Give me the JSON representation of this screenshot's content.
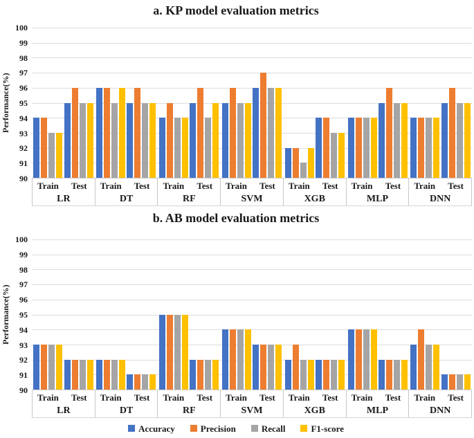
{
  "chart_data": [
    {
      "type": "bar",
      "title": "a. KP model evaluation metrics",
      "ylabel": "Performance(%)",
      "ylim": [
        90,
        100
      ],
      "ytick_step": 1,
      "grid": "horizontal",
      "legend_position": "shared-bottom",
      "models": [
        "LR",
        "DT",
        "RF",
        "SVM",
        "XGB",
        "MLP",
        "DNN"
      ],
      "phases": [
        "Train",
        "Test"
      ],
      "series": [
        {
          "name": "Accuracy",
          "color": "#4472C4",
          "values": [
            [
              94,
              95
            ],
            [
              96,
              95
            ],
            [
              94,
              95
            ],
            [
              95,
              96
            ],
            [
              92,
              94
            ],
            [
              94,
              95
            ],
            [
              94,
              95
            ]
          ]
        },
        {
          "name": "Precision",
          "color": "#ED7D31",
          "values": [
            [
              94,
              96
            ],
            [
              96,
              96
            ],
            [
              95,
              96
            ],
            [
              96,
              97
            ],
            [
              92,
              94
            ],
            [
              94,
              96
            ],
            [
              94,
              96
            ]
          ]
        },
        {
          "name": "Recall",
          "color": "#A5A5A5",
          "values": [
            [
              93,
              95
            ],
            [
              95,
              95
            ],
            [
              94,
              94
            ],
            [
              95,
              96
            ],
            [
              91,
              93
            ],
            [
              94,
              95
            ],
            [
              94,
              95
            ]
          ]
        },
        {
          "name": "F1-score",
          "color": "#FFC000",
          "values": [
            [
              93,
              95
            ],
            [
              96,
              95
            ],
            [
              94,
              95
            ],
            [
              95,
              96
            ],
            [
              92,
              93
            ],
            [
              94,
              95
            ],
            [
              94,
              95
            ]
          ]
        }
      ]
    },
    {
      "type": "bar",
      "title": "b. AB model evaluation metrics",
      "ylabel": "Performance(%)",
      "ylim": [
        90,
        100
      ],
      "ytick_step": 1,
      "grid": "horizontal",
      "legend_position": "shared-bottom",
      "models": [
        "LR",
        "DT",
        "RF",
        "SVM",
        "XGB",
        "MLP",
        "DNN"
      ],
      "phases": [
        "Train",
        "Test"
      ],
      "series": [
        {
          "name": "Accuracy",
          "color": "#4472C4",
          "values": [
            [
              93,
              92
            ],
            [
              92,
              91
            ],
            [
              95,
              92
            ],
            [
              94,
              93
            ],
            [
              92,
              92
            ],
            [
              94,
              92
            ],
            [
              93,
              91
            ]
          ]
        },
        {
          "name": "Precision",
          "color": "#ED7D31",
          "values": [
            [
              93,
              92
            ],
            [
              92,
              91
            ],
            [
              95,
              92
            ],
            [
              94,
              93
            ],
            [
              93,
              92
            ],
            [
              94,
              92
            ],
            [
              94,
              91
            ]
          ]
        },
        {
          "name": "Recall",
          "color": "#A5A5A5",
          "values": [
            [
              93,
              92
            ],
            [
              92,
              91
            ],
            [
              95,
              92
            ],
            [
              94,
              93
            ],
            [
              92,
              92
            ],
            [
              94,
              92
            ],
            [
              93,
              91
            ]
          ]
        },
        {
          "name": "F1-score",
          "color": "#FFC000",
          "values": [
            [
              93,
              92
            ],
            [
              92,
              91
            ],
            [
              95,
              92
            ],
            [
              94,
              93
            ],
            [
              92,
              92
            ],
            [
              94,
              92
            ],
            [
              93,
              91
            ]
          ]
        }
      ]
    }
  ],
  "legend": {
    "entries": [
      {
        "label": "Accuracy",
        "color": "#4472C4"
      },
      {
        "label": "Precision",
        "color": "#ED7D31"
      },
      {
        "label": "Recall",
        "color": "#A5A5A5"
      },
      {
        "label": "F1-score",
        "color": "#FFC000"
      }
    ]
  }
}
